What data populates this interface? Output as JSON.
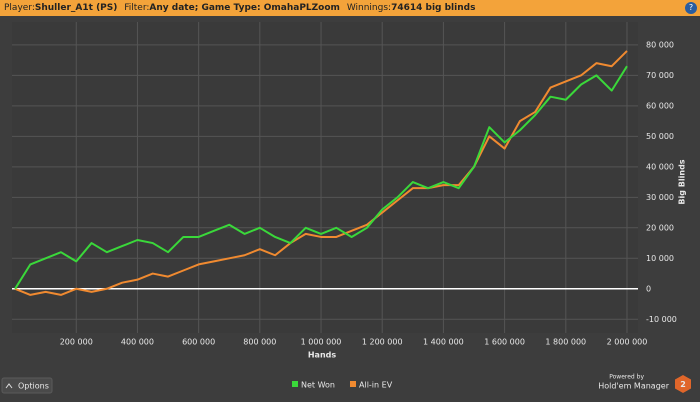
{
  "header": {
    "player_label": "Player:",
    "player": "Shuller_A1t (PS)",
    "filter_label": "Filter:",
    "filter": "Any date; Game Type: OmahaPLZoom",
    "winnings_label": "Winnings:",
    "winnings": "74614 big blinds",
    "help": "?"
  },
  "footer": {
    "options": "Options",
    "powered_by": "Powered by",
    "brand": "Hold'em Manager",
    "brand_version": "2"
  },
  "chart_data": {
    "type": "line",
    "x_label": "Hands",
    "y_label": "Big Blinds",
    "x": [
      0,
      50000,
      100000,
      150000,
      200000,
      250000,
      300000,
      350000,
      400000,
      450000,
      500000,
      550000,
      600000,
      650000,
      700000,
      750000,
      800000,
      850000,
      900000,
      950000,
      1000000,
      1050000,
      1100000,
      1150000,
      1200000,
      1250000,
      1300000,
      1350000,
      1400000,
      1450000,
      1500000,
      1550000,
      1600000,
      1650000,
      1700000,
      1750000,
      1800000,
      1850000,
      1900000,
      1950000,
      2000000
    ],
    "series": [
      {
        "name": "Net Won",
        "color": "#3ad83a",
        "values": [
          0,
          8000,
          10000,
          12000,
          9000,
          15000,
          12000,
          14000,
          16000,
          15000,
          12000,
          17000,
          17000,
          19000,
          21000,
          18000,
          20000,
          17000,
          15000,
          20000,
          18000,
          20000,
          17000,
          20000,
          26000,
          30000,
          35000,
          33000,
          35000,
          33000,
          40000,
          53000,
          48000,
          52000,
          57000,
          63000,
          62000,
          67000,
          70000,
          65000,
          73000
        ]
      },
      {
        "name": "All-in EV",
        "color": "#f08a30",
        "values": [
          0,
          -2000,
          -1000,
          -2000,
          0,
          -1000,
          0,
          2000,
          3000,
          5000,
          4000,
          6000,
          8000,
          9000,
          10000,
          11000,
          13000,
          11000,
          15000,
          18000,
          17000,
          17000,
          19000,
          21000,
          25000,
          29000,
          33000,
          33000,
          34000,
          34000,
          40000,
          50000,
          46000,
          55000,
          58000,
          66000,
          68000,
          70000,
          74000,
          73000,
          78000
        ]
      }
    ],
    "xlim": [
      -10000,
      2036000
    ],
    "xticks": [
      {
        "value": 200000,
        "label": "200 000"
      },
      {
        "value": 400000,
        "label": "400 000"
      },
      {
        "value": 600000,
        "label": "600 000"
      },
      {
        "value": 800000,
        "label": "800 000"
      },
      {
        "value": 1000000,
        "label": "1 000 000"
      },
      {
        "value": 1200000,
        "label": "1 200 000"
      },
      {
        "value": 1400000,
        "label": "1 400 000"
      },
      {
        "value": 1600000,
        "label": "1 600 000"
      },
      {
        "value": 1800000,
        "label": "1 800 000"
      },
      {
        "value": 2000000,
        "label": "2 000 000"
      }
    ],
    "ylim": [
      -14500,
      87500
    ],
    "yticks": [
      {
        "value": -10000,
        "label": "-10 000"
      },
      0,
      {
        "value": 10000,
        "label": "10 000"
      },
      {
        "value": 20000,
        "label": "20 000"
      },
      {
        "value": 30000,
        "label": "30 000"
      },
      {
        "value": 40000,
        "label": "40 000"
      },
      {
        "value": 50000,
        "label": "50 000"
      },
      {
        "value": 60000,
        "label": "60 000"
      },
      {
        "value": 70000,
        "label": "70 000"
      },
      {
        "value": 80000,
        "label": "80 000"
      }
    ],
    "grid": true,
    "legend": "bottom"
  }
}
